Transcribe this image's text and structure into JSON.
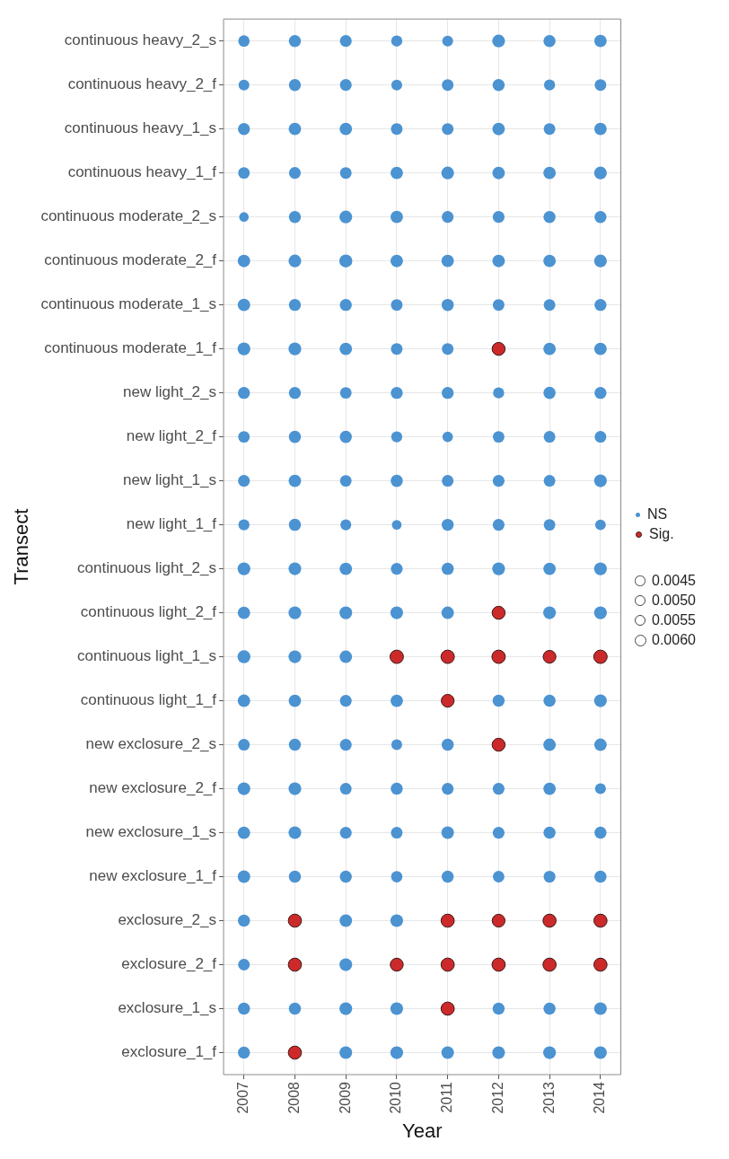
{
  "chart_data": {
    "type": "bubble",
    "xlabel": "Year",
    "ylabel": "Transect",
    "orientation": "horizontal",
    "categories": [
      "continuous heavy_2_s",
      "continuous heavy_2_f",
      "continuous heavy_1_s",
      "continuous heavy_1_f",
      "continuous moderate_2_s",
      "continuous moderate_2_f",
      "continuous moderate_1_s",
      "continuous moderate_1_f",
      "new light_2_s",
      "new light_2_f",
      "new light_1_s",
      "new light_1_f",
      "continuous light_2_s",
      "continuous light_2_f",
      "continuous light_1_s",
      "continuous light_1_f",
      "new exclosure_2_s",
      "new exclosure_2_f",
      "new exclosure_1_s",
      "new exclosure_1_f",
      "exclosure_2_s",
      "exclosure_2_f",
      "exclosure_1_s",
      "exclosure_1_f"
    ],
    "xlim": [
      2006.6,
      2014.4
    ],
    "xticks": [
      2007,
      2008,
      2009,
      2010,
      2011,
      2012,
      2013,
      2014
    ],
    "grid": true,
    "legend": "right",
    "size_legend": [
      {
        "value": 0.0045,
        "label": "0.0045"
      },
      {
        "value": 0.005,
        "label": "0.0050"
      },
      {
        "value": 0.0055,
        "label": "0.0055"
      },
      {
        "value": 0.006,
        "label": "0.0060"
      }
    ],
    "series": [
      {
        "name": "NS",
        "color": "#4c93d2",
        "values": [
          2007,
          2008,
          2009,
          2010,
          2011,
          2012,
          2013,
          2014,
          2007,
          2008,
          2009,
          2010,
          2011,
          2012,
          2013,
          2014,
          2007,
          2008,
          2009,
          2010,
          2011,
          2012,
          2013,
          2014,
          2007,
          2008,
          2009,
          2010,
          2011,
          2012,
          2013,
          2014,
          2007,
          2008,
          2009,
          2010,
          2011,
          2012,
          2013,
          2014,
          2007,
          2008,
          2009,
          2010,
          2011,
          2012,
          2013,
          2014,
          2007,
          2008,
          2009,
          2010,
          2011,
          2012,
          2013,
          2014,
          2007,
          2008,
          2009,
          2010,
          2011,
          2013,
          2014,
          2007,
          2008,
          2009,
          2010,
          2011,
          2012,
          2013,
          2014,
          2007,
          2008,
          2009,
          2010,
          2011,
          2012,
          2013,
          2014,
          2007,
          2008,
          2009,
          2010,
          2011,
          2012,
          2013,
          2014,
          2007,
          2008,
          2009,
          2010,
          2011,
          2012,
          2013,
          2014,
          2007,
          2008,
          2009,
          2010,
          2011,
          2012,
          2013,
          2014,
          2007,
          2008,
          2009,
          2010,
          2011,
          2013,
          2014,
          2007,
          2008,
          2009,
          2007,
          2008,
          2009,
          2010,
          2012,
          2013,
          2014,
          2007,
          2008,
          2009,
          2010,
          2011,
          2013,
          2014,
          2007,
          2008,
          2009,
          2010,
          2011,
          2012,
          2013,
          2014,
          2007,
          2008,
          2009,
          2010,
          2011,
          2012,
          2013,
          2014,
          2007,
          2008,
          2009,
          2010,
          2011,
          2012,
          2013,
          2014,
          2007,
          2009,
          2010,
          2007,
          2009,
          2007,
          2008,
          2009,
          2010,
          2012,
          2013,
          2014,
          2007,
          2009,
          2010,
          2011,
          2012,
          2013,
          2014
        ],
        "x": [
          "continuous heavy_2_s",
          "continuous heavy_2_s",
          "continuous heavy_2_s",
          "continuous heavy_2_s",
          "continuous heavy_2_s",
          "continuous heavy_2_s",
          "continuous heavy_2_s",
          "continuous heavy_2_s",
          "continuous heavy_2_f",
          "continuous heavy_2_f",
          "continuous heavy_2_f",
          "continuous heavy_2_f",
          "continuous heavy_2_f",
          "continuous heavy_2_f",
          "continuous heavy_2_f",
          "continuous heavy_2_f",
          "continuous heavy_1_s",
          "continuous heavy_1_s",
          "continuous heavy_1_s",
          "continuous heavy_1_s",
          "continuous heavy_1_s",
          "continuous heavy_1_s",
          "continuous heavy_1_s",
          "continuous heavy_1_s",
          "continuous heavy_1_f",
          "continuous heavy_1_f",
          "continuous heavy_1_f",
          "continuous heavy_1_f",
          "continuous heavy_1_f",
          "continuous heavy_1_f",
          "continuous heavy_1_f",
          "continuous heavy_1_f",
          "continuous moderate_2_s",
          "continuous moderate_2_s",
          "continuous moderate_2_s",
          "continuous moderate_2_s",
          "continuous moderate_2_s",
          "continuous moderate_2_s",
          "continuous moderate_2_s",
          "continuous moderate_2_s",
          "continuous moderate_2_f",
          "continuous moderate_2_f",
          "continuous moderate_2_f",
          "continuous moderate_2_f",
          "continuous moderate_2_f",
          "continuous moderate_2_f",
          "continuous moderate_2_f",
          "continuous moderate_2_f",
          "continuous moderate_1_s",
          "continuous moderate_1_s",
          "continuous moderate_1_s",
          "continuous moderate_1_s",
          "continuous moderate_1_s",
          "continuous moderate_1_s",
          "continuous moderate_1_s",
          "continuous moderate_1_s",
          "continuous moderate_1_f",
          "continuous moderate_1_f",
          "continuous moderate_1_f",
          "continuous moderate_1_f",
          "continuous moderate_1_f",
          "continuous moderate_1_f",
          "continuous moderate_1_f",
          "new light_2_s",
          "new light_2_s",
          "new light_2_s",
          "new light_2_s",
          "new light_2_s",
          "new light_2_s",
          "new light_2_s",
          "new light_2_s",
          "new light_2_f",
          "new light_2_f",
          "new light_2_f",
          "new light_2_f",
          "new light_2_f",
          "new light_2_f",
          "new light_2_f",
          "new light_2_f",
          "new light_1_s",
          "new light_1_s",
          "new light_1_s",
          "new light_1_s",
          "new light_1_s",
          "new light_1_s",
          "new light_1_s",
          "new light_1_s",
          "new light_1_f",
          "new light_1_f",
          "new light_1_f",
          "new light_1_f",
          "new light_1_f",
          "new light_1_f",
          "new light_1_f",
          "new light_1_f",
          "continuous light_2_s",
          "continuous light_2_s",
          "continuous light_2_s",
          "continuous light_2_s",
          "continuous light_2_s",
          "continuous light_2_s",
          "continuous light_2_s",
          "continuous light_2_s",
          "continuous light_2_f",
          "continuous light_2_f",
          "continuous light_2_f",
          "continuous light_2_f",
          "continuous light_2_f",
          "continuous light_2_f",
          "continuous light_2_f",
          "continuous light_1_s",
          "continuous light_1_s",
          "continuous light_1_s",
          "continuous light_1_f",
          "continuous light_1_f",
          "continuous light_1_f",
          "continuous light_1_f",
          "continuous light_1_f",
          "continuous light_1_f",
          "continuous light_1_f",
          "new exclosure_2_s",
          "new exclosure_2_s",
          "new exclosure_2_s",
          "new exclosure_2_s",
          "new exclosure_2_s",
          "new exclosure_2_s",
          "new exclosure_2_s",
          "new exclosure_2_f",
          "new exclosure_2_f",
          "new exclosure_2_f",
          "new exclosure_2_f",
          "new exclosure_2_f",
          "new exclosure_2_f",
          "new exclosure_2_f",
          "new exclosure_2_f",
          "new exclosure_1_s",
          "new exclosure_1_s",
          "new exclosure_1_s",
          "new exclosure_1_s",
          "new exclosure_1_s",
          "new exclosure_1_s",
          "new exclosure_1_s",
          "new exclosure_1_s",
          "new exclosure_1_f",
          "new exclosure_1_f",
          "new exclosure_1_f",
          "new exclosure_1_f",
          "new exclosure_1_f",
          "new exclosure_1_f",
          "new exclosure_1_f",
          "new exclosure_1_f",
          "exclosure_2_s",
          "exclosure_2_s",
          "exclosure_2_s",
          "exclosure_2_f",
          "exclosure_2_f",
          "exclosure_1_s",
          "exclosure_1_s",
          "exclosure_1_s",
          "exclosure_1_s",
          "exclosure_1_s",
          "exclosure_1_s",
          "exclosure_1_s",
          "exclosure_1_f",
          "exclosure_1_f",
          "exclosure_1_f",
          "exclosure_1_f",
          "exclosure_1_f",
          "exclosure_1_f",
          "exclosure_1_f"
        ],
        "sizes": [
          0.0057,
          0.0065,
          0.0062,
          0.0055,
          0.0052,
          0.0072,
          0.0065,
          0.0068,
          0.0052,
          0.0064,
          0.0062,
          0.0052,
          0.006,
          0.0065,
          0.0054,
          0.006,
          0.0064,
          0.0068,
          0.0068,
          0.006,
          0.006,
          0.0069,
          0.006,
          0.0068,
          0.0059,
          0.0062,
          0.006,
          0.0068,
          0.0071,
          0.0069,
          0.0068,
          0.0071,
          0.004,
          0.0064,
          0.0072,
          0.0068,
          0.0062,
          0.0062,
          0.0065,
          0.0064,
          0.0069,
          0.0071,
          0.0074,
          0.0069,
          0.0068,
          0.0069,
          0.0068,
          0.0071,
          0.0069,
          0.0064,
          0.0064,
          0.006,
          0.0065,
          0.006,
          0.006,
          0.0064,
          0.0072,
          0.0072,
          0.0068,
          0.006,
          0.006,
          0.0068,
          0.0069,
          0.0064,
          0.0064,
          0.0059,
          0.0064,
          0.0064,
          0.0055,
          0.0065,
          0.0064,
          0.0059,
          0.0065,
          0.0065,
          0.0054,
          0.0048,
          0.0059,
          0.006,
          0.006,
          0.0062,
          0.0069,
          0.0059,
          0.0065,
          0.006,
          0.0062,
          0.006,
          0.0071,
          0.0055,
          0.0065,
          0.0052,
          0.0041,
          0.0064,
          0.0062,
          0.0059,
          0.005,
          0.0072,
          0.0071,
          0.0069,
          0.0062,
          0.0065,
          0.0072,
          0.0068,
          0.0072,
          0.0068,
          0.0072,
          0.0072,
          0.0071,
          0.0069,
          0.0071,
          0.0072,
          0.0074,
          0.0072,
          0.0069,
          0.0069,
          0.0068,
          0.0062,
          0.0068,
          0.0064,
          0.0065,
          0.0071,
          0.006,
          0.0064,
          0.0062,
          0.0051,
          0.0065,
          0.0069,
          0.0069,
          0.0071,
          0.0071,
          0.006,
          0.0064,
          0.0062,
          0.0062,
          0.0068,
          0.0052,
          0.0068,
          0.0071,
          0.0062,
          0.006,
          0.0069,
          0.0062,
          0.0065,
          0.0064,
          0.0069,
          0.0065,
          0.0064,
          0.0057,
          0.0064,
          0.0059,
          0.0062,
          0.0065,
          0.0065,
          0.0069,
          0.0071,
          0.006,
          0.0072,
          0.0065,
          0.0065,
          0.0072,
          0.0071,
          0.0064,
          0.0065,
          0.0071,
          0.0064,
          0.0071,
          0.0072,
          0.0069,
          0.0071,
          0.0072,
          0.0071
        ]
      },
      {
        "name": "Sig.",
        "color": "#cc2a2a",
        "values": [
          2012,
          2012,
          2010,
          2011,
          2012,
          2013,
          2014,
          2011,
          2012,
          2008,
          2011,
          2012,
          2013,
          2014,
          2008,
          2010,
          2011,
          2012,
          2013,
          2014,
          2011,
          2008
        ],
        "x": [
          "continuous moderate_1_f",
          "continuous light_2_f",
          "continuous light_1_s",
          "continuous light_1_s",
          "continuous light_1_s",
          "continuous light_1_s",
          "continuous light_1_s",
          "continuous light_1_f",
          "new exclosure_2_s",
          "exclosure_2_s",
          "exclosure_2_s",
          "exclosure_2_s",
          "exclosure_2_s",
          "exclosure_2_s",
          "exclosure_2_f",
          "exclosure_2_f",
          "exclosure_2_f",
          "exclosure_2_f",
          "exclosure_2_f",
          "exclosure_2_f",
          "exclosure_1_s",
          "exclosure_1_f"
        ],
        "sizes": [
          0.0074,
          0.0074,
          0.0079,
          0.0079,
          0.0079,
          0.0072,
          0.0079,
          0.0072,
          0.0074,
          0.0076,
          0.0076,
          0.0072,
          0.0076,
          0.0076,
          0.0076,
          0.0074,
          0.0077,
          0.0077,
          0.0077,
          0.0076,
          0.0077,
          0.0076
        ]
      }
    ]
  }
}
